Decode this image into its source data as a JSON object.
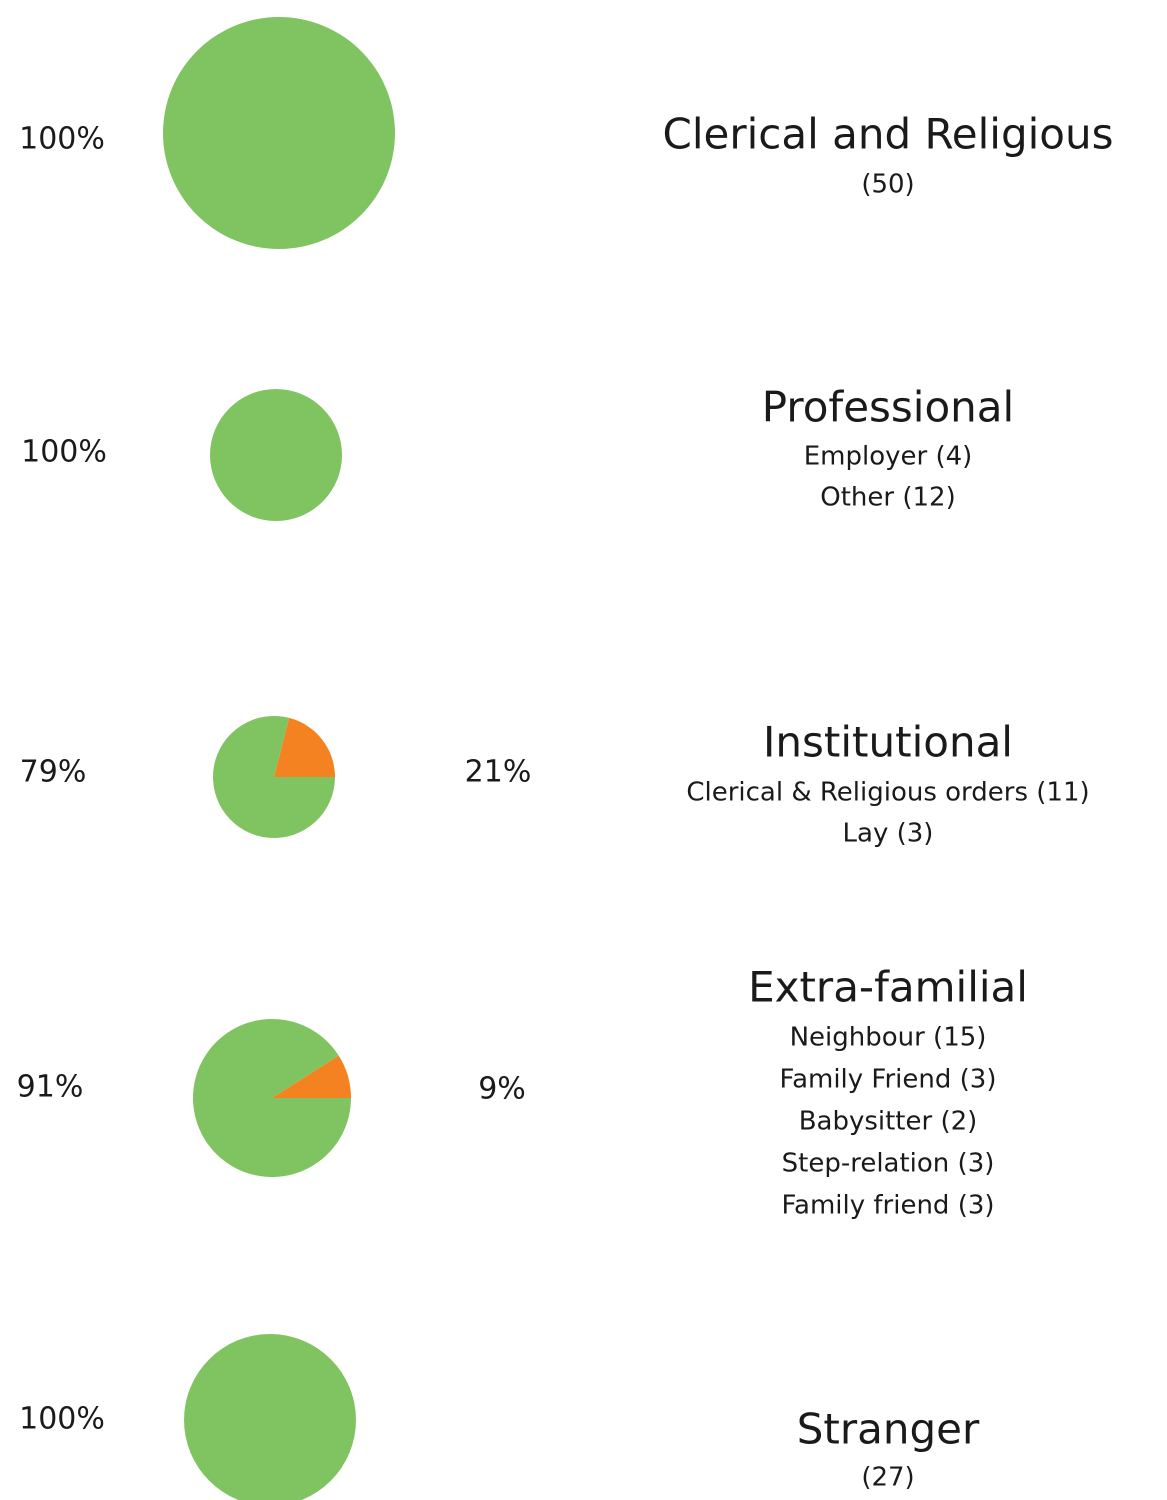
{
  "chart_data": [
    {
      "type": "pie",
      "title": "Clerical and Religious",
      "annotations": [
        "(50)"
      ],
      "values": [
        100
      ],
      "value_labels": [
        "100%"
      ],
      "colors": [
        "#80c462"
      ]
    },
    {
      "type": "pie",
      "title": "Professional",
      "annotations": [
        "Employer (4)",
        "Other (12)"
      ],
      "values": [
        100
      ],
      "value_labels": [
        "100%"
      ],
      "colors": [
        "#80c462"
      ]
    },
    {
      "type": "pie",
      "title": "Institutional",
      "annotations": [
        "Clerical & Religious orders (11)",
        "Lay (3)"
      ],
      "values": [
        79,
        21
      ],
      "value_labels": [
        "79%",
        "21%"
      ],
      "colors": [
        "#80c462",
        "#f58220"
      ]
    },
    {
      "type": "pie",
      "title": "Extra-familial",
      "annotations": [
        "Neighbour (15)",
        "Family Friend (3)",
        "Babysitter (2)",
        "Step-relation (3)",
        "Family friend (3)"
      ],
      "values": [
        91,
        9
      ],
      "value_labels": [
        "91%",
        "9%"
      ],
      "colors": [
        "#80c462",
        "#f58220"
      ]
    },
    {
      "type": "pie",
      "title": "Stranger",
      "annotations": [
        "(27)"
      ],
      "values": [
        100
      ],
      "value_labels": [
        "100%"
      ],
      "colors": [
        "#80c462"
      ]
    }
  ]
}
